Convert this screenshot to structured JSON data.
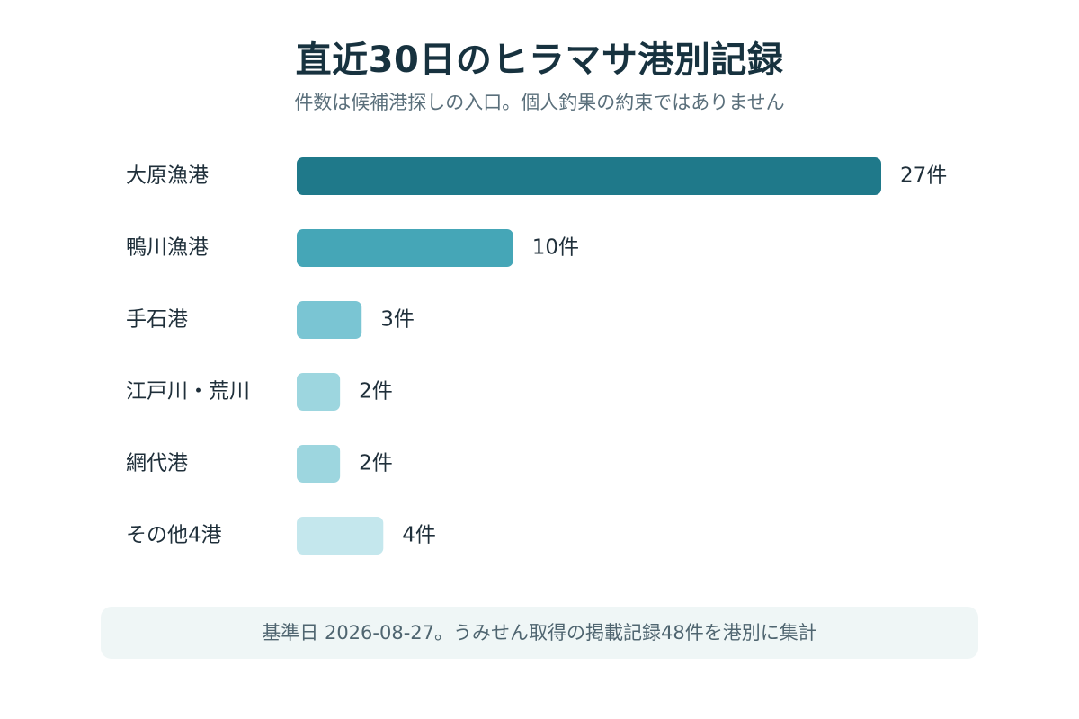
{
  "chart_data": {
    "type": "bar",
    "orientation": "horizontal",
    "title": "直近30日のヒラマサ港別記録",
    "subtitle": "件数は候補港探しの入口。個人釣果の約束ではありません",
    "categories": [
      "大原漁港",
      "鴨川漁港",
      "手石港",
      "江戸川・荒川",
      "網代港",
      "その他4港"
    ],
    "values": [
      27,
      10,
      3,
      2,
      2,
      4
    ],
    "value_labels": [
      "27件",
      "10件",
      "3件",
      "2件",
      "2件",
      "4件"
    ],
    "bar_colors": [
      "#1f798a",
      "#45a6b7",
      "#7ac5d3",
      "#9dd6df",
      "#9dd6df",
      "#c4e7ed"
    ],
    "xlim": [
      0,
      27
    ],
    "grid": false,
    "legend": "none",
    "footnote": "基準日 2026-08-27。うみせん取得の掲載記録48件を港別に集計"
  }
}
